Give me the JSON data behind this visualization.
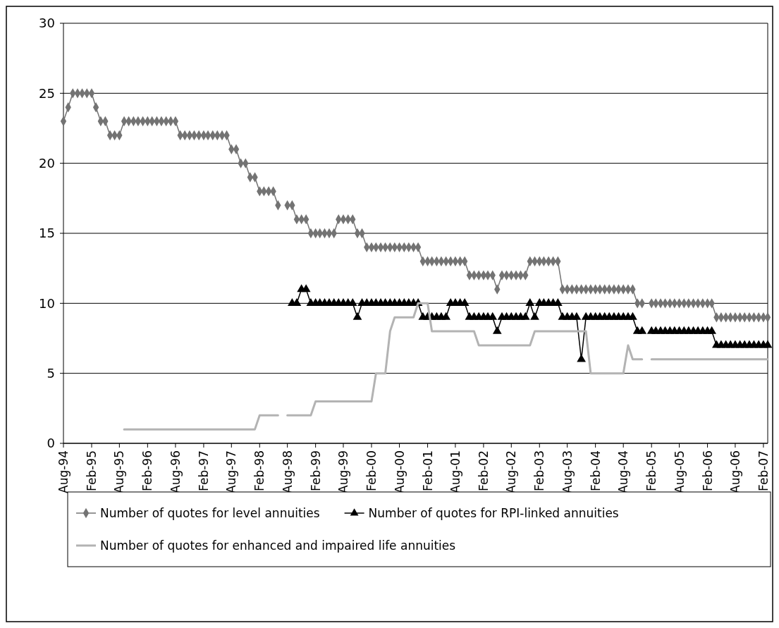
{
  "chart_data": {
    "type": "line",
    "x": [
      "1994-08",
      "1994-09",
      "1994-10",
      "1994-11",
      "1994-12",
      "1995-01",
      "1995-02",
      "1995-03",
      "1995-04",
      "1995-05",
      "1995-06",
      "1995-07",
      "1995-08",
      "1995-09",
      "1995-10",
      "1995-11",
      "1995-12",
      "1996-01",
      "1996-02",
      "1996-03",
      "1996-04",
      "1996-05",
      "1996-06",
      "1996-07",
      "1996-08",
      "1996-09",
      "1996-10",
      "1996-11",
      "1996-12",
      "1997-01",
      "1997-02",
      "1997-03",
      "1997-04",
      "1997-05",
      "1997-06",
      "1997-07",
      "1997-08",
      "1997-09",
      "1997-10",
      "1997-11",
      "1997-12",
      "1998-01",
      "1998-02",
      "1998-03",
      "1998-04",
      "1998-05",
      "1998-06",
      "1998-07",
      "1998-08",
      "1998-09",
      "1998-10",
      "1998-11",
      "1998-12",
      "1999-01",
      "1999-02",
      "1999-03",
      "1999-04",
      "1999-05",
      "1999-06",
      "1999-07",
      "1999-08",
      "1999-09",
      "1999-10",
      "1999-11",
      "1999-12",
      "2000-01",
      "2000-02",
      "2000-03",
      "2000-04",
      "2000-05",
      "2000-06",
      "2000-07",
      "2000-08",
      "2000-09",
      "2000-10",
      "2000-11",
      "2000-12",
      "2001-01",
      "2001-02",
      "2001-03",
      "2001-04",
      "2001-05",
      "2001-06",
      "2001-07",
      "2001-08",
      "2001-09",
      "2001-10",
      "2001-11",
      "2001-12",
      "2002-01",
      "2002-02",
      "2002-03",
      "2002-04",
      "2002-05",
      "2002-06",
      "2002-07",
      "2002-08",
      "2002-09",
      "2002-10",
      "2002-11",
      "2002-12",
      "2003-01",
      "2003-02",
      "2003-03",
      "2003-04",
      "2003-05",
      "2003-06",
      "2003-07",
      "2003-08",
      "2003-09",
      "2003-10",
      "2003-11",
      "2003-12",
      "2004-01",
      "2004-02",
      "2004-03",
      "2004-04",
      "2004-05",
      "2004-06",
      "2004-07",
      "2004-08",
      "2004-09",
      "2004-10",
      "2004-11",
      "2004-12",
      "2005-01",
      "2005-02",
      "2005-03",
      "2005-04",
      "2005-05",
      "2005-06",
      "2005-07",
      "2005-08",
      "2005-09",
      "2005-10",
      "2005-11",
      "2005-12",
      "2006-01",
      "2006-02",
      "2006-03",
      "2006-04",
      "2006-05",
      "2006-06",
      "2006-07",
      "2006-08",
      "2006-09",
      "2006-10",
      "2006-11",
      "2006-12",
      "2007-01",
      "2007-02",
      "2007-03"
    ],
    "series": [
      {
        "name": "Number of quotes for level annuities",
        "color": "#737373",
        "marker": "diamond",
        "values": [
          23,
          24,
          25,
          25,
          25,
          25,
          25,
          24,
          23,
          23,
          22,
          22,
          22,
          23,
          23,
          23,
          23,
          23,
          23,
          23,
          23,
          23,
          23,
          23,
          23,
          22,
          22,
          22,
          22,
          22,
          22,
          22,
          22,
          22,
          22,
          22,
          21,
          21,
          20,
          20,
          19,
          19,
          18,
          18,
          18,
          18,
          17,
          null,
          17,
          17,
          16,
          16,
          16,
          15,
          15,
          15,
          15,
          15,
          15,
          16,
          16,
          16,
          16,
          15,
          15,
          14,
          14,
          14,
          14,
          14,
          14,
          14,
          14,
          14,
          14,
          14,
          14,
          13,
          13,
          13,
          13,
          13,
          13,
          13,
          13,
          13,
          13,
          12,
          12,
          12,
          12,
          12,
          12,
          11,
          12,
          12,
          12,
          12,
          12,
          12,
          13,
          13,
          13,
          13,
          13,
          13,
          13,
          11,
          11,
          11,
          11,
          11,
          11,
          11,
          11,
          11,
          11,
          11,
          11,
          11,
          11,
          11,
          11,
          10,
          10,
          null,
          10,
          10,
          10,
          10,
          10,
          10,
          10,
          10,
          10,
          10,
          10,
          10,
          10,
          10,
          9,
          9,
          9,
          9,
          9,
          9,
          9,
          9,
          9,
          9,
          9,
          9
        ]
      },
      {
        "name": "Number of quotes for RPI-linked annuities",
        "color": "#000000",
        "marker": "triangle",
        "values": [
          null,
          null,
          null,
          null,
          null,
          null,
          null,
          null,
          null,
          null,
          null,
          null,
          null,
          null,
          null,
          null,
          null,
          null,
          null,
          null,
          null,
          null,
          null,
          null,
          null,
          null,
          null,
          null,
          null,
          null,
          null,
          null,
          null,
          null,
          null,
          null,
          null,
          null,
          null,
          null,
          null,
          null,
          null,
          null,
          null,
          null,
          null,
          null,
          null,
          10,
          10,
          11,
          11,
          10,
          10,
          10,
          10,
          10,
          10,
          10,
          10,
          10,
          10,
          9,
          10,
          10,
          10,
          10,
          10,
          10,
          10,
          10,
          10,
          10,
          10,
          10,
          10,
          9,
          9,
          9,
          9,
          9,
          9,
          10,
          10,
          10,
          10,
          9,
          9,
          9,
          9,
          9,
          9,
          8,
          9,
          9,
          9,
          9,
          9,
          9,
          10,
          9,
          10,
          10,
          10,
          10,
          10,
          9,
          9,
          9,
          9,
          6,
          9,
          9,
          9,
          9,
          9,
          9,
          9,
          9,
          9,
          9,
          9,
          8,
          8,
          null,
          8,
          8,
          8,
          8,
          8,
          8,
          8,
          8,
          8,
          8,
          8,
          8,
          8,
          8,
          7,
          7,
          7,
          7,
          7,
          7,
          7,
          7,
          7,
          7,
          7,
          7
        ]
      },
      {
        "name": "Number of quotes for enhanced and impaired life annuities",
        "color": "#b3b3b3",
        "marker": "none",
        "values": [
          null,
          null,
          null,
          null,
          null,
          null,
          null,
          null,
          null,
          null,
          null,
          null,
          null,
          1,
          1,
          1,
          1,
          1,
          1,
          1,
          1,
          1,
          1,
          1,
          1,
          1,
          1,
          1,
          1,
          1,
          1,
          1,
          1,
          1,
          1,
          1,
          1,
          1,
          1,
          1,
          1,
          1,
          2,
          2,
          2,
          2,
          2,
          null,
          2,
          2,
          2,
          2,
          2,
          2,
          3,
          3,
          3,
          3,
          3,
          3,
          3,
          3,
          3,
          3,
          3,
          3,
          3,
          5,
          5,
          5,
          8,
          9,
          9,
          9,
          9,
          9,
          10,
          10,
          10,
          8,
          8,
          8,
          8,
          8,
          8,
          8,
          8,
          8,
          8,
          7,
          7,
          7,
          7,
          7,
          7,
          7,
          7,
          7,
          7,
          7,
          7,
          8,
          8,
          8,
          8,
          8,
          8,
          8,
          8,
          8,
          8,
          8,
          8,
          5,
          5,
          5,
          5,
          5,
          5,
          5,
          5,
          7,
          6,
          6,
          6,
          null,
          6,
          6,
          6,
          6,
          6,
          6,
          6,
          6,
          6,
          6,
          6,
          6,
          6,
          6,
          6,
          6,
          6,
          6,
          6,
          6,
          6,
          6,
          6,
          6,
          6,
          6
        ]
      }
    ],
    "xlim": [
      "1994-08",
      "2007-03"
    ],
    "xticks": [
      {
        "value": "1994-08",
        "label": "Aug-94"
      },
      {
        "value": "1995-02",
        "label": "Feb-95"
      },
      {
        "value": "1995-08",
        "label": "Aug-95"
      },
      {
        "value": "1996-02",
        "label": "Feb-96"
      },
      {
        "value": "1996-08",
        "label": "Aug-96"
      },
      {
        "value": "1997-02",
        "label": "Feb-97"
      },
      {
        "value": "1997-08",
        "label": "Aug-97"
      },
      {
        "value": "1998-02",
        "label": "Feb-98"
      },
      {
        "value": "1998-08",
        "label": "Aug-98"
      },
      {
        "value": "1999-02",
        "label": "Feb-99"
      },
      {
        "value": "1999-08",
        "label": "Aug-99"
      },
      {
        "value": "2000-02",
        "label": "Feb-00"
      },
      {
        "value": "2000-08",
        "label": "Aug-00"
      },
      {
        "value": "2001-02",
        "label": "Feb-01"
      },
      {
        "value": "2001-08",
        "label": "Aug-01"
      },
      {
        "value": "2002-02",
        "label": "Feb-02"
      },
      {
        "value": "2002-08",
        "label": "Aug-02"
      },
      {
        "value": "2003-02",
        "label": "Feb-03"
      },
      {
        "value": "2003-08",
        "label": "Aug-03"
      },
      {
        "value": "2004-02",
        "label": "Feb-04"
      },
      {
        "value": "2004-08",
        "label": "Aug-04"
      },
      {
        "value": "2005-02",
        "label": "Feb-05"
      },
      {
        "value": "2005-08",
        "label": "Aug-05"
      },
      {
        "value": "2006-02",
        "label": "Feb-06"
      },
      {
        "value": "2006-08",
        "label": "Aug-06"
      },
      {
        "value": "2007-02",
        "label": "Feb-07"
      }
    ],
    "ylim": [
      0,
      30
    ],
    "yticks": [
      0,
      5,
      10,
      15,
      20,
      25,
      30
    ],
    "grid": "y",
    "legend": "bottom"
  }
}
